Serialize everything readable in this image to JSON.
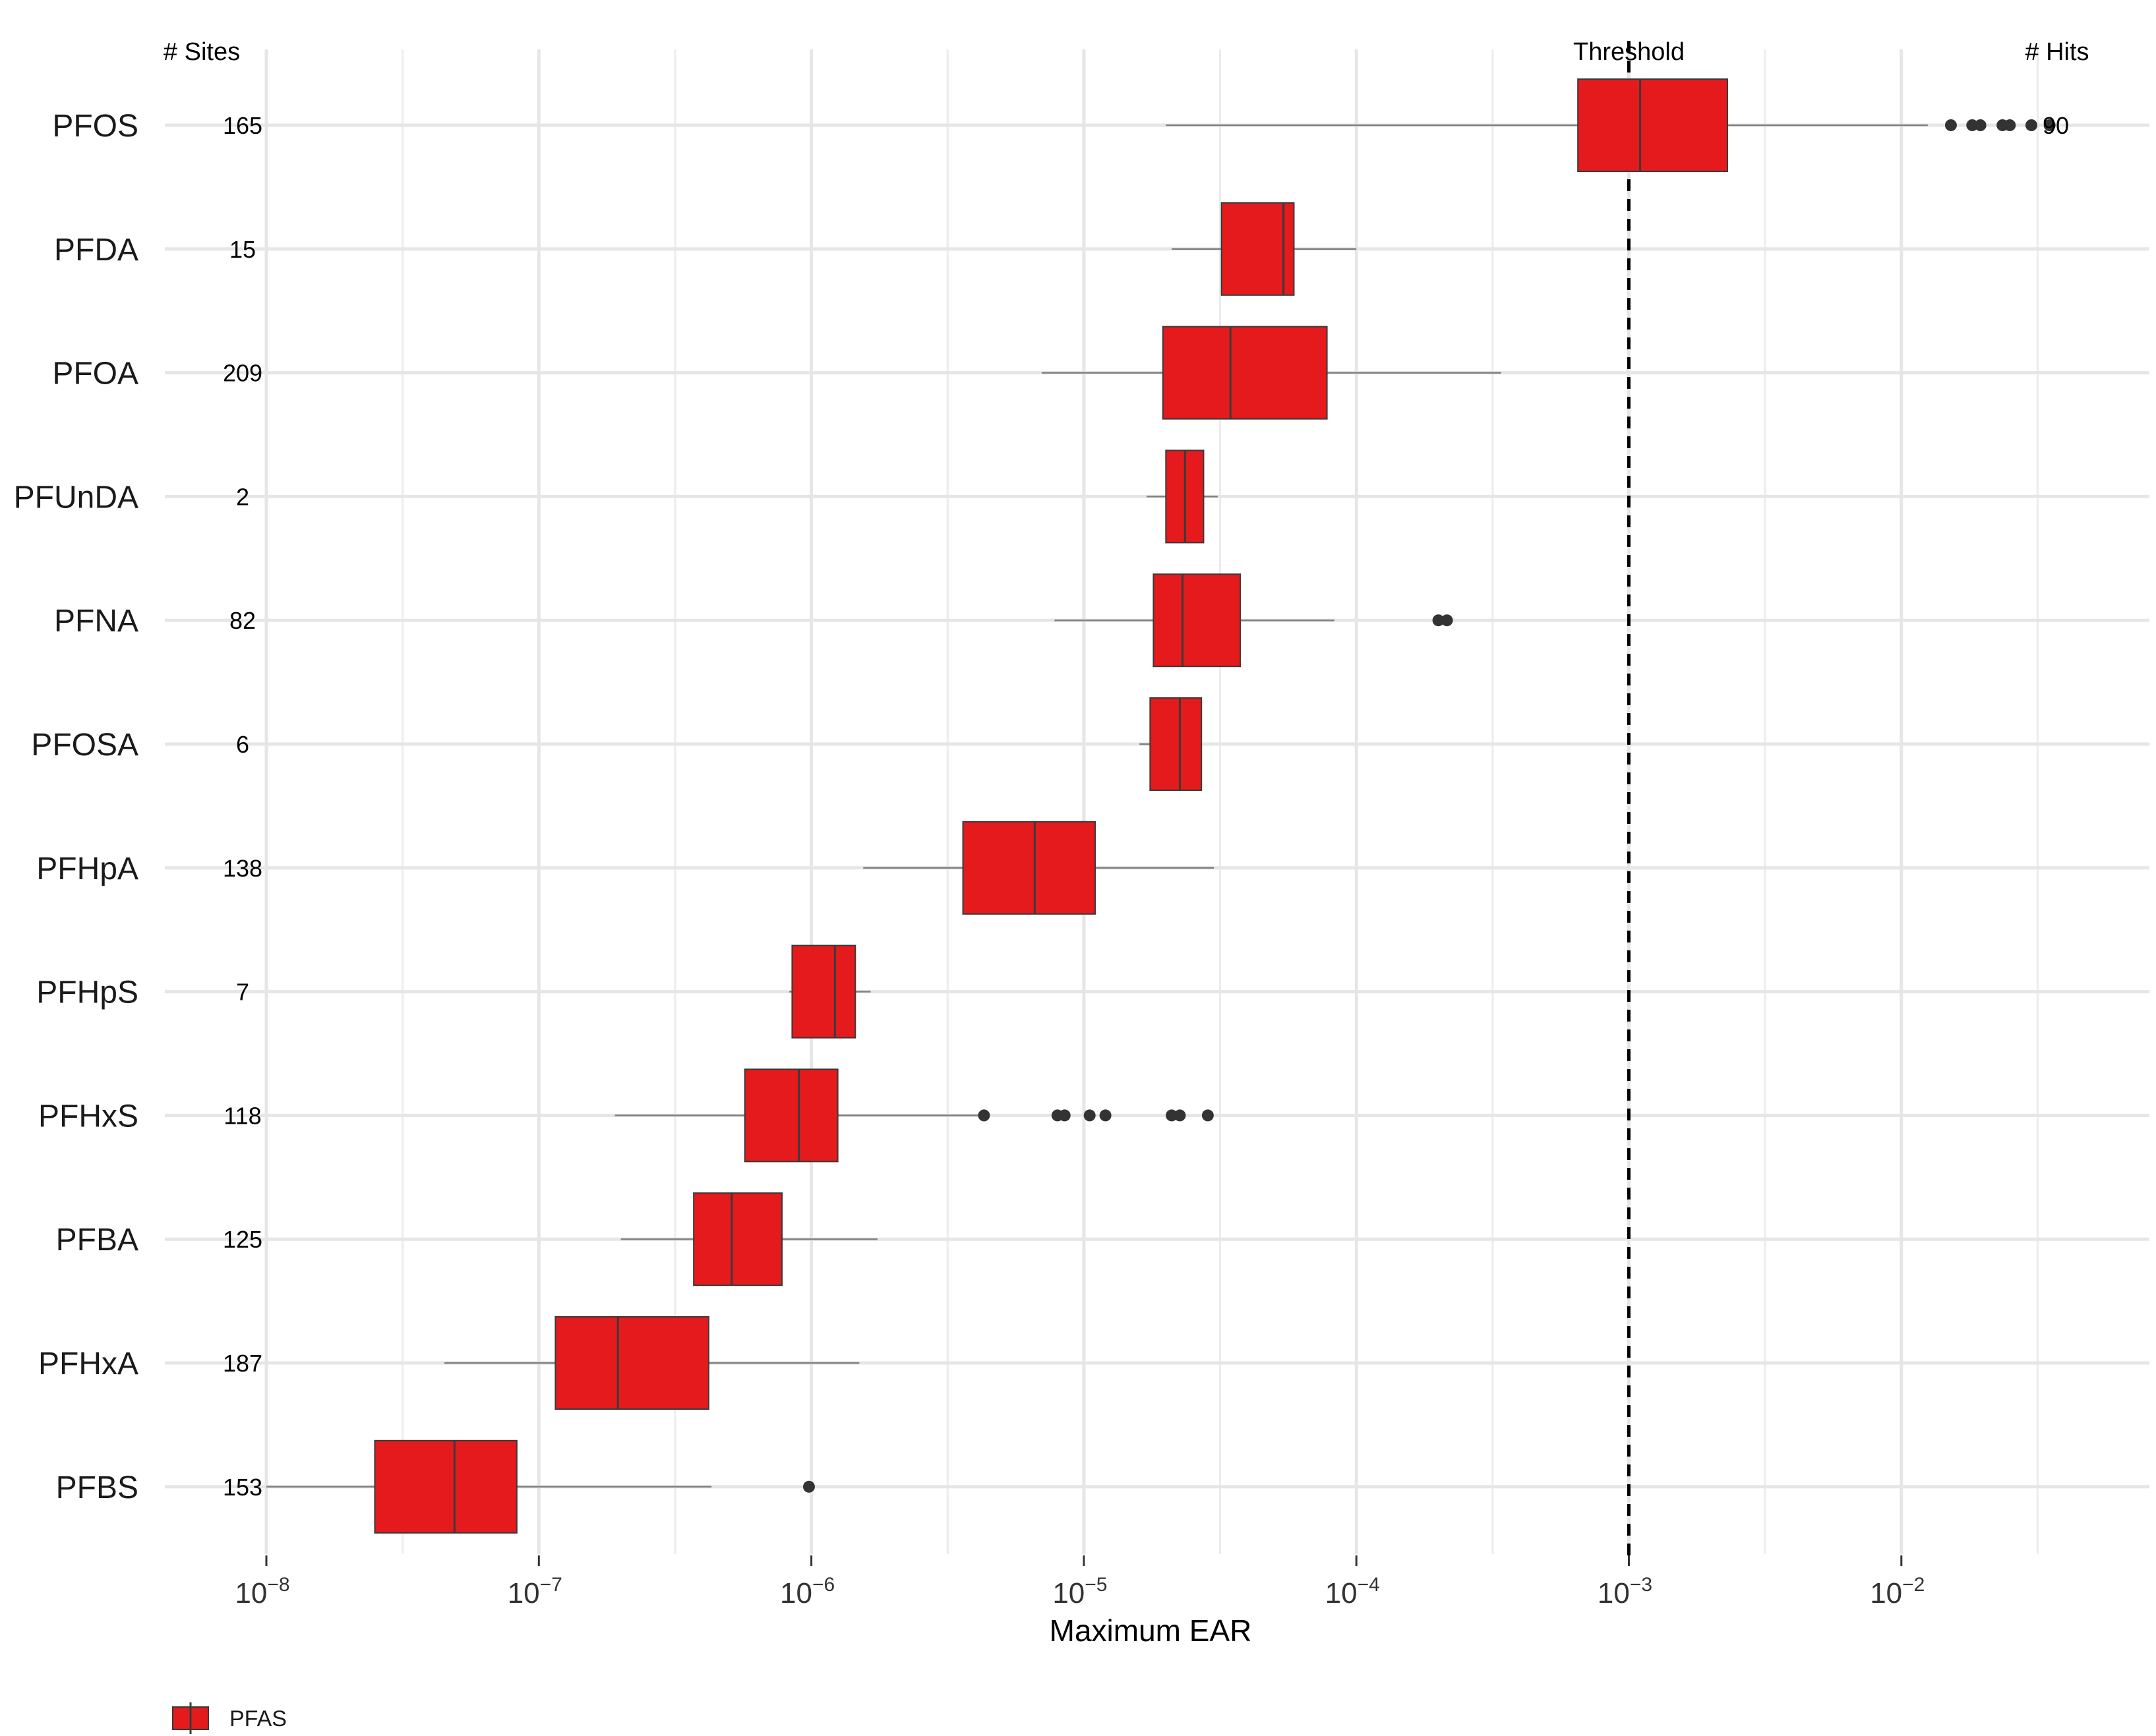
{
  "chart_data": {
    "type": "boxplot",
    "orientation": "horizontal",
    "x_scale": "log10",
    "xlabel": "Maximum EAR",
    "xlim": [
      1e-08,
      0.05
    ],
    "x_ticks": [
      {
        "value": 1e-08,
        "base": "10",
        "exp": "−8"
      },
      {
        "value": 1e-07,
        "base": "10",
        "exp": "−7"
      },
      {
        "value": 1e-06,
        "base": "10",
        "exp": "−6"
      },
      {
        "value": 1e-05,
        "base": "10",
        "exp": "−5"
      },
      {
        "value": 0.0001,
        "base": "10",
        "exp": "−4"
      },
      {
        "value": 0.001,
        "base": "10",
        "exp": "−3"
      },
      {
        "value": 0.01,
        "base": "10",
        "exp": "−2"
      }
    ],
    "header_sites": "# Sites",
    "header_threshold": "Threshold",
    "header_hits": "# Hits",
    "threshold": 0.001,
    "legend": "PFAS",
    "box_color": "#e41a1c",
    "grid": true,
    "categories": [
      {
        "name": "PFOS",
        "sites": "165",
        "hits": "90",
        "whisker_low": 2e-05,
        "q1": 0.00065,
        "median": 0.0011,
        "q3": 0.0023,
        "whisker_high": 0.0125,
        "outliers": [
          0.0152,
          0.0182,
          0.0195,
          0.0235,
          0.025,
          0.03,
          0.035
        ]
      },
      {
        "name": "PFDA",
        "sites": "15",
        "hits": "",
        "whisker_low": 2.1e-05,
        "q1": 3.2e-05,
        "median": 5.4e-05,
        "q3": 5.9e-05,
        "whisker_high": 0.0001,
        "outliers": []
      },
      {
        "name": "PFOA",
        "sites": "209",
        "hits": "",
        "whisker_low": 7e-06,
        "q1": 1.95e-05,
        "median": 3.45e-05,
        "q3": 7.8e-05,
        "whisker_high": 0.00034,
        "outliers": []
      },
      {
        "name": "PFUnDA",
        "sites": "2",
        "hits": "",
        "whisker_low": 1.7e-05,
        "q1": 2e-05,
        "median": 2.35e-05,
        "q3": 2.75e-05,
        "whisker_high": 3.1e-05,
        "outliers": []
      },
      {
        "name": "PFNA",
        "sites": "82",
        "hits": "",
        "whisker_low": 7.8e-06,
        "q1": 1.8e-05,
        "median": 2.3e-05,
        "q3": 3.75e-05,
        "whisker_high": 8.3e-05,
        "outliers": [
          0.0002,
          0.000215
        ]
      },
      {
        "name": "PFOSA",
        "sites": "6",
        "hits": "",
        "whisker_low": 1.6e-05,
        "q1": 1.75e-05,
        "median": 2.25e-05,
        "q3": 2.7e-05,
        "whisker_high": 2.7e-05,
        "outliers": []
      },
      {
        "name": "PFHpA",
        "sites": "138",
        "hits": "",
        "whisker_low": 1.55e-06,
        "q1": 3.6e-06,
        "median": 6.6e-06,
        "q3": 1.1e-05,
        "whisker_high": 3e-05,
        "outliers": []
      },
      {
        "name": "PFHpS",
        "sites": "7",
        "hits": "",
        "whisker_low": 8.3e-07,
        "q1": 8.5e-07,
        "median": 1.22e-06,
        "q3": 1.45e-06,
        "whisker_high": 1.65e-06,
        "outliers": []
      },
      {
        "name": "PFHxS",
        "sites": "118",
        "hits": "",
        "whisker_low": 1.9e-07,
        "q1": 5.7e-07,
        "median": 9e-07,
        "q3": 1.25e-06,
        "whisker_high": 4.3e-06,
        "outliers": [
          4.3e-06,
          8e-06,
          8.5e-06,
          1.05e-05,
          1.2e-05,
          2.1e-05,
          2.25e-05,
          2.85e-05
        ]
      },
      {
        "name": "PFBA",
        "sites": "125",
        "hits": "",
        "whisker_low": 2e-07,
        "q1": 3.7e-07,
        "median": 5.1e-07,
        "q3": 7.8e-07,
        "whisker_high": 1.75e-06,
        "outliers": []
      },
      {
        "name": "PFHxA",
        "sites": "187",
        "hits": "",
        "whisker_low": 4.5e-08,
        "q1": 1.15e-07,
        "median": 1.95e-07,
        "q3": 4.2e-07,
        "whisker_high": 1.5e-06,
        "outliers": []
      },
      {
        "name": "PFBS",
        "sites": "153",
        "hits": "",
        "whisker_low": 1e-08,
        "q1": 2.5e-08,
        "median": 4.9e-08,
        "q3": 8.3e-08,
        "whisker_high": 4.3e-07,
        "outliers": [
          9.8e-07
        ]
      }
    ]
  }
}
